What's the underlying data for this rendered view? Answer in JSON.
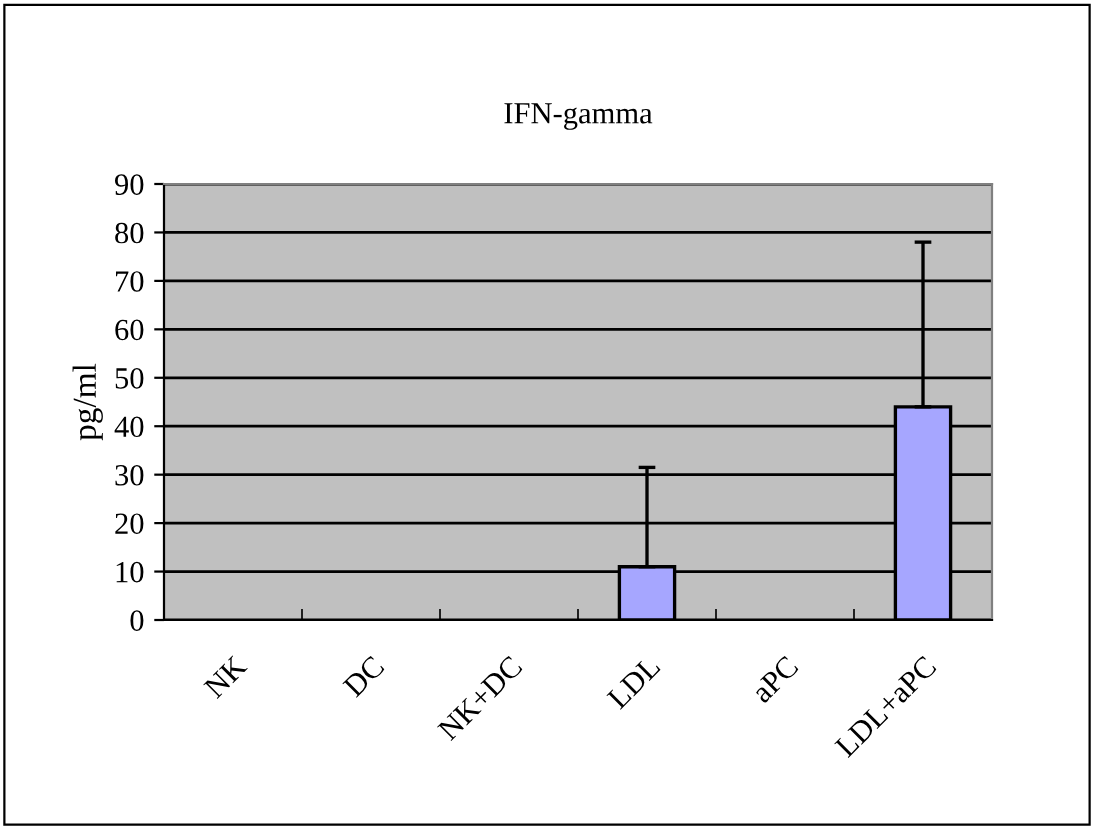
{
  "chart_data": {
    "type": "bar",
    "title": "IFN-gamma",
    "ylabel": "pg/ml",
    "categories": [
      "NK",
      "DC",
      "NK+DC",
      "LDL",
      "aPC",
      "LDL+aPC"
    ],
    "values": [
      0,
      0,
      0,
      11,
      0,
      44
    ],
    "errors": [
      null,
      null,
      null,
      [
        11,
        31.5
      ],
      null,
      [
        44,
        78
      ]
    ],
    "color": "#a6a6ff",
    "ylim": [
      0,
      90
    ],
    "yticks": [
      0,
      10,
      20,
      30,
      40,
      50,
      60,
      70,
      80,
      90
    ],
    "grid": "y"
  }
}
